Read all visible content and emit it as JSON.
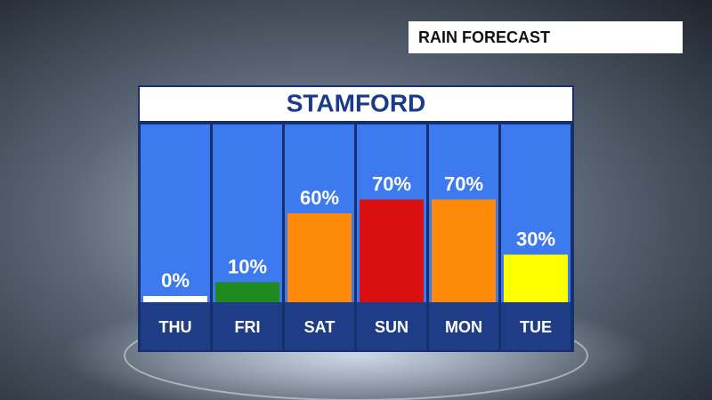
{
  "chart_data": {
    "type": "bar",
    "title": "RAIN FORECAST",
    "subtitle": "STAMFORD",
    "categories": [
      "THU",
      "FRI",
      "SAT",
      "SUN",
      "MON",
      "TUE"
    ],
    "values": [
      0,
      10,
      60,
      70,
      70,
      30
    ],
    "value_labels": [
      "0%",
      "10%",
      "60%",
      "70%",
      "70%",
      "30%"
    ],
    "colors": [
      "#ffffff",
      "#1e8a1e",
      "#ff8a0a",
      "#d81010",
      "#ff8a0a",
      "#ffff00"
    ]
  }
}
